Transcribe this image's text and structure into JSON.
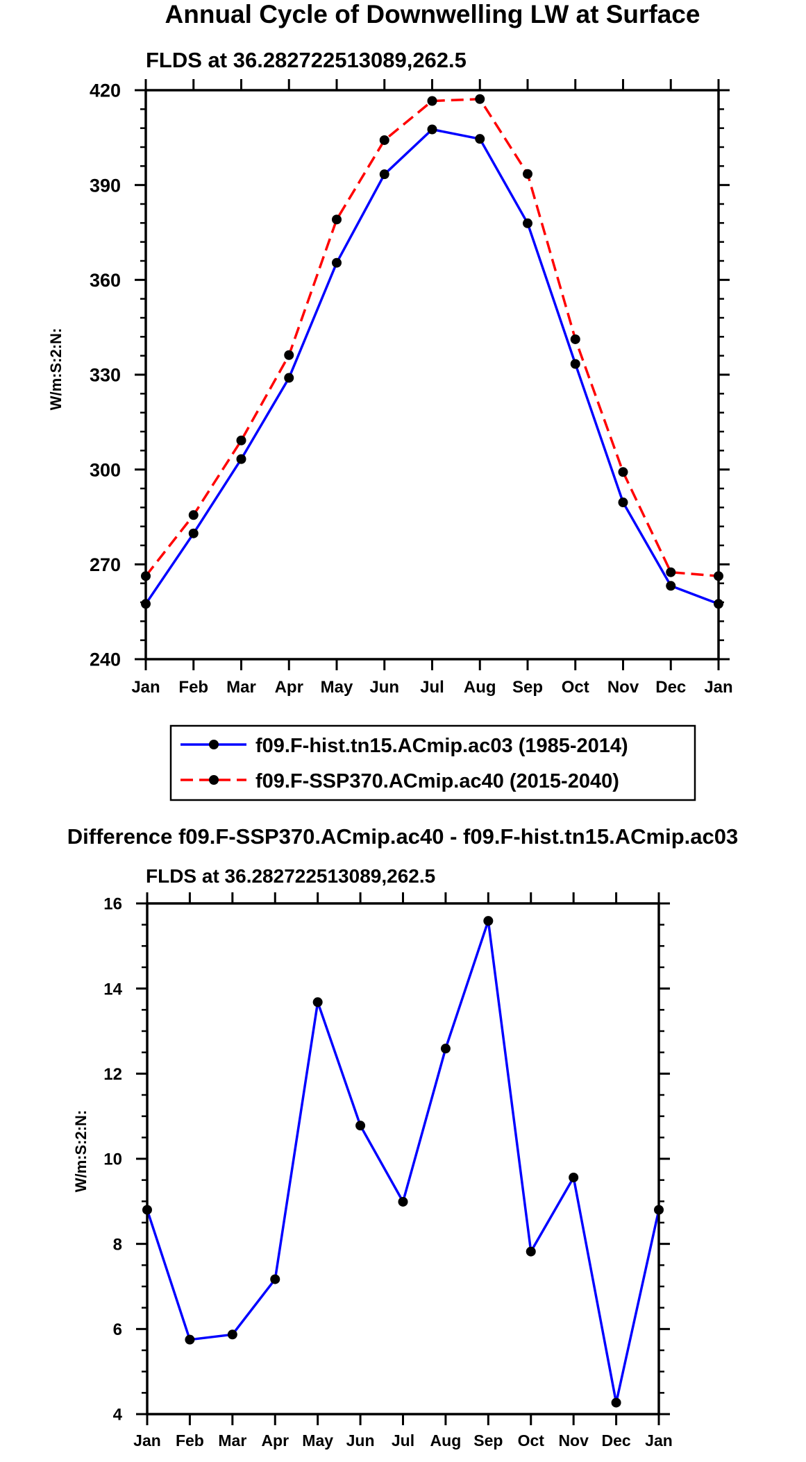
{
  "chart_data": [
    {
      "type": "line",
      "title": "Annual Cycle of Downwelling LW at Surface",
      "subtitle": "FLDS at 36.282722513089,262.5",
      "ylabel": "W/m:S:2:N:",
      "xlabel": "",
      "categories": [
        "Jan",
        "Feb",
        "Mar",
        "Apr",
        "May",
        "Jun",
        "Jul",
        "Aug",
        "Sep",
        "Oct",
        "Nov",
        "Dec",
        "Jan"
      ],
      "ylim": [
        240,
        420
      ],
      "yticks": [
        240,
        270,
        300,
        330,
        360,
        390,
        420
      ],
      "series": [
        {
          "name": "f09.F-hist.tn15.ACmip.ac03 (1985-2014)",
          "color": "#0000ff",
          "dash": "solid",
          "values": [
            257.5,
            279.8,
            303.3,
            329.0,
            365.4,
            393.4,
            407.6,
            404.6,
            377.9,
            333.4,
            289.6,
            263.2,
            257.5
          ]
        },
        {
          "name": "f09.F-SSP370.ACmip.ac40 (2015-2040)",
          "color": "#ff0000",
          "dash": "dashed",
          "values": [
            266.3,
            285.6,
            309.2,
            336.2,
            379.1,
            404.2,
            416.6,
            417.2,
            393.5,
            341.2,
            299.2,
            267.5,
            266.3
          ]
        }
      ]
    },
    {
      "type": "line",
      "title": "Difference f09.F-SSP370.ACmip.ac40 - f09.F-hist.tn15.ACmip.ac03",
      "subtitle": "FLDS at 36.282722513089,262.5",
      "ylabel": "W/m:S:2:N:",
      "xlabel": "",
      "categories": [
        "Jan",
        "Feb",
        "Mar",
        "Apr",
        "May",
        "Jun",
        "Jul",
        "Aug",
        "Sep",
        "Oct",
        "Nov",
        "Dec",
        "Jan"
      ],
      "ylim": [
        4,
        16
      ],
      "yticks": [
        4,
        6,
        8,
        10,
        12,
        14,
        16
      ],
      "series": [
        {
          "name": "difference",
          "color": "#0000ff",
          "dash": "solid",
          "values": [
            8.8,
            5.75,
            5.87,
            7.17,
            13.68,
            10.78,
            8.99,
            12.59,
            15.59,
            7.82,
            9.56,
            4.27,
            8.8
          ]
        }
      ]
    }
  ]
}
